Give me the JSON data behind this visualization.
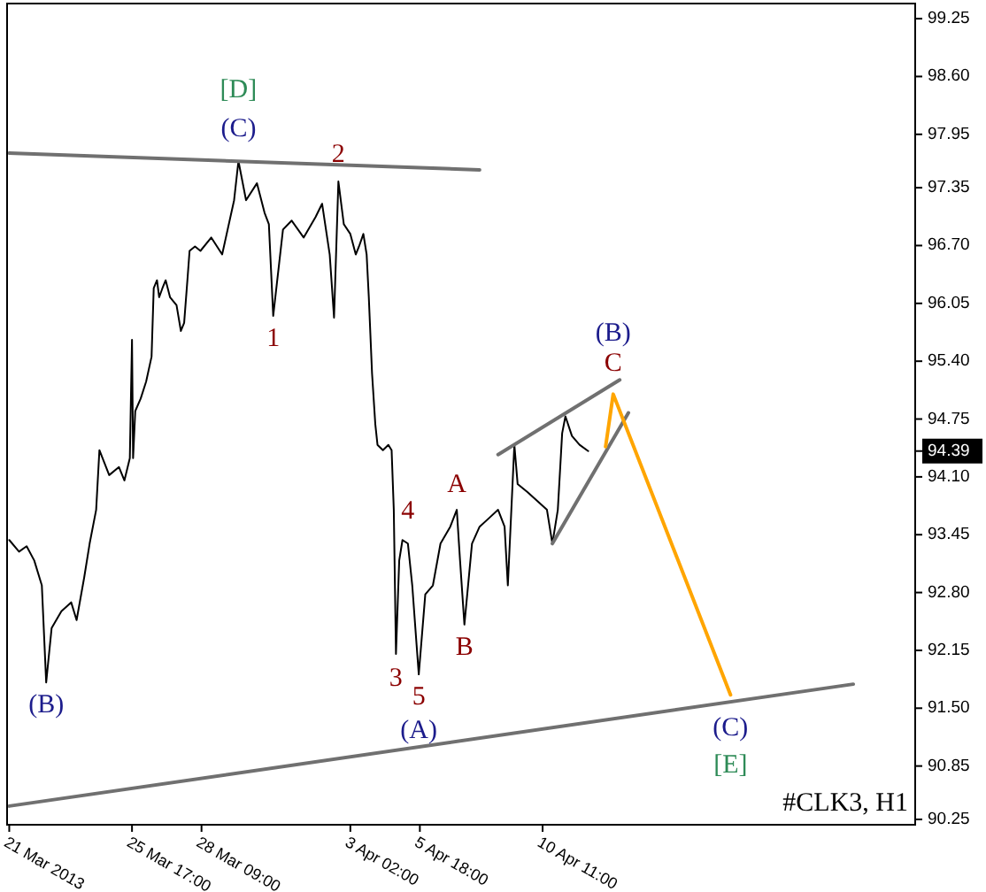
{
  "chart_data": {
    "type": "line",
    "xlim": [
      "2013-03-20T22:00",
      "2013-04-24T18:00"
    ],
    "ylim": [
      90.19,
      99.42
    ],
    "xticks": [
      {
        "value": "2013-03-21T00:00",
        "label": "21 Mar 2013"
      },
      {
        "value": "2013-03-25T17:00",
        "label": "25 Mar 17:00"
      },
      {
        "value": "2013-03-28T09:00",
        "label": "28 Mar 09:00"
      },
      {
        "value": "2013-04-03T02:00",
        "label": "3 Apr 02:00"
      },
      {
        "value": "2013-04-05T18:00",
        "label": "5 Apr 18:00"
      },
      {
        "value": "2013-04-10T11:00",
        "label": "10 Apr 11:00"
      }
    ],
    "yticks": [
      {
        "value": 99.25,
        "label": "99.25"
      },
      {
        "value": 98.6,
        "label": "98.60"
      },
      {
        "value": 97.95,
        "label": "97.95"
      },
      {
        "value": 97.35,
        "label": "97.35"
      },
      {
        "value": 96.7,
        "label": "96.70"
      },
      {
        "value": 96.05,
        "label": "96.05"
      },
      {
        "value": 95.4,
        "label": "95.40"
      },
      {
        "value": 94.75,
        "label": "94.75"
      },
      {
        "value": 94.1,
        "label": "94.10"
      },
      {
        "value": 93.45,
        "label": "93.45"
      },
      {
        "value": 92.8,
        "label": "92.80"
      },
      {
        "value": 92.15,
        "label": "92.15"
      },
      {
        "value": 91.5,
        "label": "91.50"
      },
      {
        "value": 90.85,
        "label": "90.85"
      },
      {
        "value": 90.25,
        "label": "90.25"
      }
    ],
    "grid": false,
    "series": [
      {
        "color": "#000000",
        "x": [
          "2013-03-21T00:00",
          "2013-03-21T09:00",
          "2013-03-21T16:00",
          "2013-03-21T23:00",
          "2013-03-22T06:00",
          "2013-03-22T10:00",
          "2013-03-22T15:00",
          "2013-03-23T00:00",
          "2013-03-23T09:00",
          "2013-03-23T14:00",
          "2013-03-23T21:00",
          "2013-03-24T02:00",
          "2013-03-24T08:00",
          "2013-03-24T11:00",
          "2013-03-24T20:00",
          "2013-03-25T05:00",
          "2013-03-25T10:00",
          "2013-03-25T15:00",
          "2013-03-25T17:00",
          "2013-03-25T18:00",
          "2013-03-25T20:00",
          "2013-03-26T01:00",
          "2013-03-26T06:00",
          "2013-03-26T11:00",
          "2013-03-26T13:00",
          "2013-03-26T16:00",
          "2013-03-26T18:00",
          "2013-03-26T21:00",
          "2013-03-27T00:00",
          "2013-03-27T04:00",
          "2013-03-27T10:00",
          "2013-03-27T14:00",
          "2013-03-27T17:00",
          "2013-03-27T20:00",
          "2013-03-27T22:00",
          "2013-03-28T03:00",
          "2013-03-28T08:00",
          "2013-03-28T18:00",
          "2013-03-29T04:00",
          "2013-03-29T15:00",
          "2013-03-29T19:00",
          "2013-03-30T02:00",
          "2013-03-30T12:00",
          "2013-03-30T19:00",
          "2013-03-30T23:00",
          "2013-03-31T03:00",
          "2013-03-31T12:00",
          "2013-03-31T20:00",
          "2013-04-01T07:00",
          "2013-04-01T18:00",
          "2013-04-02T00:00",
          "2013-04-02T07:00",
          "2013-04-02T11:00",
          "2013-04-02T15:00",
          "2013-04-02T20:00",
          "2013-04-03T02:00",
          "2013-04-03T07:00",
          "2013-04-03T10:00",
          "2013-04-03T14:00",
          "2013-04-03T17:00",
          "2013-04-03T19:00",
          "2013-04-03T22:00",
          "2013-04-04T01:00",
          "2013-04-04T03:00",
          "2013-04-04T08:00",
          "2013-04-04T13:00",
          "2013-04-04T16:00",
          "2013-04-04T18:00",
          "2013-04-04T20:00",
          "2013-04-04T23:00",
          "2013-04-05T02:00",
          "2013-04-05T07:00",
          "2013-04-05T11:00",
          "2013-04-05T15:00",
          "2013-04-05T17:00",
          "2013-04-05T23:00",
          "2013-04-06T06:00",
          "2013-04-06T13:00",
          "2013-04-06T22:00",
          "2013-04-07T04:00",
          "2013-04-07T07:00",
          "2013-04-07T11:00",
          "2013-04-07T18:00",
          "2013-04-08T01:00",
          "2013-04-08T10:00",
          "2013-04-08T18:00",
          "2013-04-09T00:00",
          "2013-04-09T03:00",
          "2013-04-09T09:00",
          "2013-04-09T12:00",
          "2013-04-09T21:00",
          "2013-04-10T06:00",
          "2013-04-10T15:00",
          "2013-04-10T20:00",
          "2013-04-11T01:00",
          "2013-04-11T05:00",
          "2013-04-11T08:00",
          "2013-04-11T14:00",
          "2013-04-11T21:00",
          "2013-04-12T05:00"
        ],
        "values": [
          93.39,
          93.26,
          93.32,
          93.16,
          92.88,
          91.79,
          92.4,
          92.59,
          92.69,
          92.49,
          92.97,
          93.35,
          93.73,
          94.4,
          94.12,
          94.21,
          94.06,
          94.31,
          95.64,
          94.31,
          94.84,
          94.98,
          95.17,
          95.45,
          96.22,
          96.31,
          96.12,
          96.22,
          96.31,
          96.12,
          96.03,
          95.74,
          95.83,
          96.31,
          96.64,
          96.69,
          96.64,
          96.79,
          96.6,
          97.21,
          97.65,
          97.21,
          97.4,
          97.07,
          96.94,
          95.91,
          96.88,
          96.98,
          96.79,
          97.02,
          97.17,
          96.6,
          95.89,
          97.42,
          96.94,
          96.83,
          96.6,
          96.69,
          96.83,
          96.6,
          96.12,
          95.26,
          94.69,
          94.46,
          94.4,
          94.46,
          94.4,
          93.73,
          92.11,
          93.16,
          93.39,
          93.35,
          92.88,
          92.21,
          91.88,
          92.78,
          92.88,
          93.35,
          93.54,
          93.73,
          93.16,
          92.44,
          93.35,
          93.54,
          93.64,
          93.73,
          93.54,
          92.88,
          94.46,
          94.02,
          93.93,
          93.83,
          93.73,
          93.35,
          93.73,
          94.59,
          94.78,
          94.56,
          94.46,
          94.39
        ]
      },
      {
        "color": "#707070",
        "x": [
          "2013-03-21T00:00",
          "2013-04-08T01:00"
        ],
        "values": [
          97.74,
          97.55
        ]
      },
      {
        "color": "#707070",
        "x": [
          "2013-03-21T00:00",
          "2013-04-22T09:00"
        ],
        "values": [
          90.4,
          91.77
        ]
      },
      {
        "color": "#707070",
        "x": [
          "2013-04-08T18:00",
          "2013-04-13T10:00"
        ],
        "values": [
          94.35,
          95.19
        ]
      },
      {
        "color": "#707070",
        "x": [
          "2013-04-10T20:00",
          "2013-04-13T18:00"
        ],
        "values": [
          93.35,
          94.82
        ]
      },
      {
        "color": "#ffa500",
        "x": [
          "2013-04-12T21:00",
          "2013-04-13T04:00",
          "2013-04-17T16:00"
        ],
        "values": [
          94.44,
          95.03,
          91.65
        ]
      }
    ],
    "annotations": [
      {
        "text": "[D]",
        "x": "2013-03-29T19:00",
        "y": 97.65
      },
      {
        "text": "(C)",
        "x": "2013-03-29T19:00",
        "y": 97.65
      },
      {
        "text": "2",
        "x": "2013-04-02T15:00",
        "y": 97.42
      },
      {
        "text": "1",
        "x": "2013-03-31T03:00",
        "y": 95.91
      },
      {
        "text": "(B)",
        "x": "2013-03-22T10:00",
        "y": 91.79
      },
      {
        "text": "3",
        "x": "2013-04-04T20:00",
        "y": 92.11
      },
      {
        "text": "4",
        "x": "2013-04-05T07:00",
        "y": 93.35
      },
      {
        "text": "5",
        "x": "2013-04-05T17:00",
        "y": 91.88
      },
      {
        "text": "(A)",
        "x": "2013-04-05T17:00",
        "y": 91.88
      },
      {
        "text": "A",
        "x": "2013-04-07T04:00",
        "y": 93.73
      },
      {
        "text": "B",
        "x": "2013-04-07T11:00",
        "y": 92.44
      },
      {
        "text": "(B)",
        "x": "2013-04-13T04:00",
        "y": 95.03
      },
      {
        "text": "C",
        "x": "2013-04-13T04:00",
        "y": 95.03
      },
      {
        "text": "(C)",
        "x": "2013-04-17T16:00",
        "y": 91.65
      },
      {
        "text": "[E]",
        "x": "2013-04-17T16:00",
        "y": 91.65
      },
      "94.39",
      "#CLK3, H1"
    ]
  }
}
